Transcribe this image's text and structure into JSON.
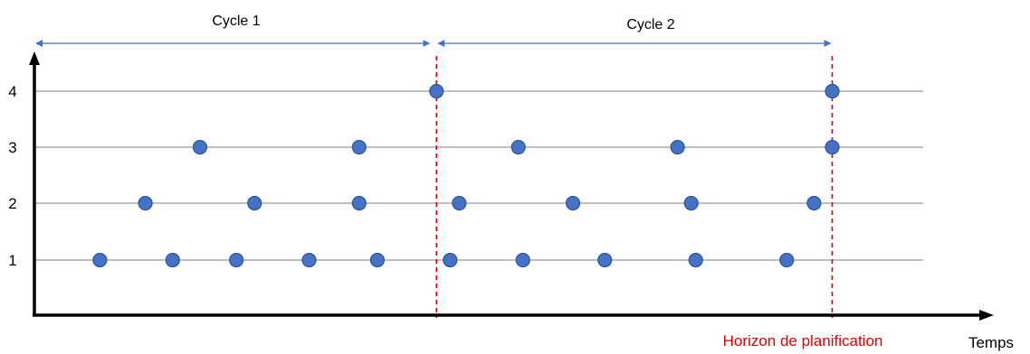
{
  "cycles": [
    {
      "label": "Cycle 1"
    },
    {
      "label": "Cycle 2"
    }
  ],
  "y_levels": [
    "1",
    "2",
    "3",
    "4"
  ],
  "x_axis_label": "Temps",
  "horizon_label": "Horizon de planification",
  "colors": {
    "point": "#4472c4",
    "point_stroke": "#2f5597",
    "arrow": "#4472c4",
    "gridline": "#7f7f7f",
    "axis": "#000000",
    "dashed": "#e00000",
    "horizon_text": "#e00000"
  },
  "points": [
    {
      "level": 1,
      "t": 0.7
    },
    {
      "level": 1,
      "t": 1.5
    },
    {
      "level": 1,
      "t": 2.2
    },
    {
      "level": 1,
      "t": 3.0
    },
    {
      "level": 1,
      "t": 3.75
    },
    {
      "level": 1,
      "t": 4.55
    },
    {
      "level": 1,
      "t": 5.35
    },
    {
      "level": 1,
      "t": 6.25
    },
    {
      "level": 1,
      "t": 7.25
    },
    {
      "level": 1,
      "t": 8.25
    },
    {
      "level": 2,
      "t": 1.2
    },
    {
      "level": 2,
      "t": 2.4
    },
    {
      "level": 2,
      "t": 3.55
    },
    {
      "level": 2,
      "t": 4.65
    },
    {
      "level": 2,
      "t": 5.9
    },
    {
      "level": 2,
      "t": 7.2
    },
    {
      "level": 2,
      "t": 8.55
    },
    {
      "level": 3,
      "t": 1.8
    },
    {
      "level": 3,
      "t": 3.55
    },
    {
      "level": 3,
      "t": 5.3
    },
    {
      "level": 3,
      "t": 7.05
    },
    {
      "level": 3,
      "t": 8.75
    },
    {
      "level": 4,
      "t": 4.4
    },
    {
      "level": 4,
      "t": 8.75
    }
  ],
  "boundaries": [
    4.4,
    8.75
  ],
  "t_range": [
    0,
    9.75
  ]
}
